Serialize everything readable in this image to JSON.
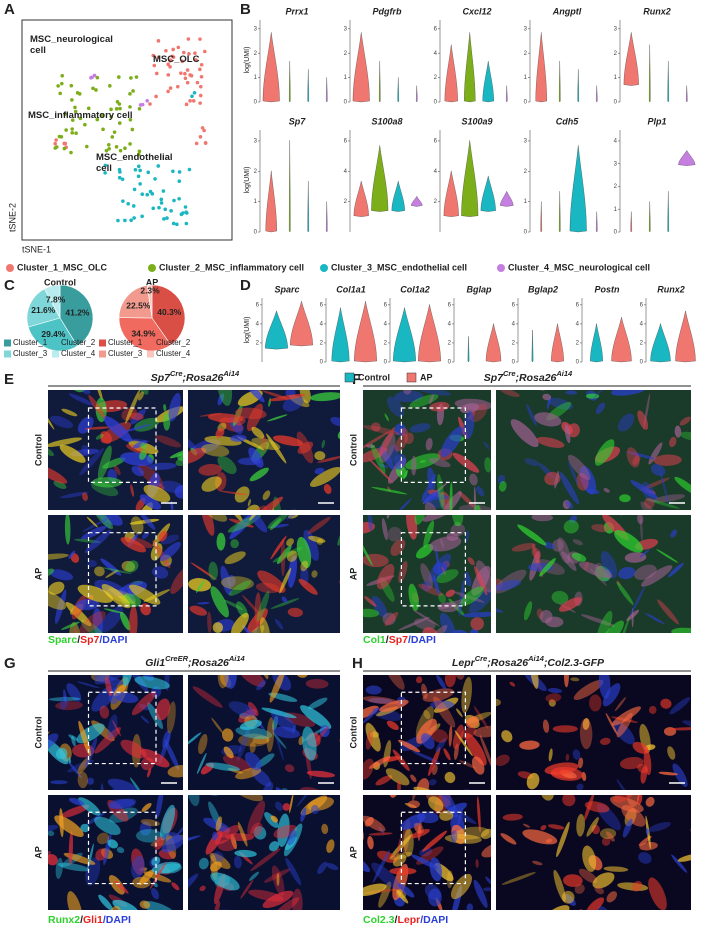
{
  "panel_labels": [
    "A",
    "B",
    "C",
    "D",
    "E",
    "F",
    "G",
    "H"
  ],
  "tsne": {
    "cluster_labels": [
      "MSC_neurological cell",
      "MSC_OLC",
      "MSC_inflammatory cell",
      "MSC_endothelial cell"
    ],
    "x_label": "tSNE-1",
    "y_label": "tSNE-2"
  },
  "violins_b": {
    "y_label": "log(UMI)",
    "plots": [
      {
        "gene": "Prrx1",
        "yticks": [
          0,
          1,
          2,
          3
        ]
      },
      {
        "gene": "Pdgfrb",
        "yticks": [
          0,
          1,
          2,
          3
        ]
      },
      {
        "gene": "Cxcl12",
        "yticks": [
          0,
          2,
          4,
          6
        ]
      },
      {
        "gene": "Angptl",
        "yticks": [
          0,
          1,
          2,
          3
        ]
      },
      {
        "gene": "Runx2",
        "yticks": [
          0,
          1,
          2,
          3
        ]
      },
      {
        "gene": "Sp7",
        "yticks": [
          0,
          1,
          2,
          3
        ]
      },
      {
        "gene": "S100a8",
        "yticks": [
          2,
          4,
          6
        ]
      },
      {
        "gene": "S100a9",
        "yticks": [
          2,
          4,
          6
        ]
      },
      {
        "gene": "Cdh5",
        "yticks": [
          0,
          1,
          2,
          3
        ]
      },
      {
        "gene": "Plp1",
        "yticks": [
          0,
          1,
          2,
          3,
          4
        ]
      }
    ]
  },
  "cluster_legend": [
    {
      "name": "Cluster_1_MSC_OLC",
      "color": "#f0776f"
    },
    {
      "name": "Cluster_2_MSC_inflammatory cell",
      "color": "#7cae1a"
    },
    {
      "name": "Cluster_3_MSC_endothelial cell",
      "color": "#19b7c2"
    },
    {
      "name": "Cluster_4_MSC_neurological cell",
      "color": "#c47fe0"
    }
  ],
  "pies": [
    {
      "title": "Control",
      "values": [
        41.2,
        29.4,
        21.6,
        7.8
      ],
      "value_labels": [
        "41.2%",
        "29.4%",
        "21.6%",
        "7.8%"
      ],
      "legend": [
        "Cluster_1",
        "Cluster_2",
        "Cluster_3",
        "Cluster_4"
      ],
      "colors": [
        "#3a9d9d",
        "#4ec3c6",
        "#7fd7d9",
        "#b8ecee"
      ]
    },
    {
      "title": "AP",
      "values": [
        40.3,
        34.9,
        22.5,
        2.3
      ],
      "value_labels": [
        "40.3%",
        "34.9%",
        "22.5%",
        "2.3%"
      ],
      "legend": [
        "Cluster_1",
        "Cluster_2",
        "Cluster_3",
        "Cluster_4"
      ],
      "colors": [
        "#d94f45",
        "#f06a5f",
        "#f39a8f",
        "#f8c6bf"
      ]
    }
  ],
  "violins_d": {
    "y_label": "log(UMI)",
    "plots": [
      {
        "gene": "Sparc",
        "yticks": [
          2,
          4,
          6
        ]
      },
      {
        "gene": "Col1a1",
        "yticks": [
          0,
          2,
          4,
          6
        ]
      },
      {
        "gene": "Col1a2",
        "yticks": [
          0,
          2,
          4,
          6
        ]
      },
      {
        "gene": "Bglap",
        "yticks": [
          0,
          2,
          4,
          6
        ]
      },
      {
        "gene": "Bglap2",
        "yticks": [
          0,
          2,
          4,
          6
        ]
      },
      {
        "gene": "Postn",
        "yticks": [
          0,
          2,
          4,
          6
        ]
      },
      {
        "gene": "Runx2",
        "yticks": [
          0,
          2,
          4,
          6
        ]
      }
    ],
    "legend": [
      {
        "name": "Control",
        "color": "#19b7c2"
      },
      {
        "name": "AP",
        "color": "#f0776f"
      }
    ]
  },
  "micrographs": [
    {
      "title_parts": [
        {
          "text": "Sp7",
          "sup": false
        },
        {
          "text": "Cre",
          "sup": true
        },
        {
          "text": ";Rosa26",
          "sup": false
        },
        {
          "text": "Ai14",
          "sup": true
        }
      ],
      "rows": [
        "Control",
        "AP"
      ],
      "stain": [
        {
          "text": "Sparc",
          "color": "#2ed12e"
        },
        {
          "text": "/",
          "color": "#222222"
        },
        {
          "text": "Sp7",
          "color": "#e8231f"
        },
        {
          "text": "/DAPI",
          "color": "#2a3fd8"
        }
      ]
    },
    {
      "title_parts": [
        {
          "text": "Sp7",
          "sup": false
        },
        {
          "text": "Cre",
          "sup": true
        },
        {
          "text": ";Rosa26",
          "sup": false
        },
        {
          "text": "Ai14",
          "sup": true
        }
      ],
      "rows": [
        "Control",
        "AP"
      ],
      "stain": [
        {
          "text": "Col1",
          "color": "#2ed12e"
        },
        {
          "text": "/",
          "color": "#222222"
        },
        {
          "text": "Sp7",
          "color": "#e8231f"
        },
        {
          "text": "/DAPI",
          "color": "#2a3fd8"
        }
      ]
    },
    {
      "title_parts": [
        {
          "text": "Gli1",
          "sup": false
        },
        {
          "text": "CreER",
          "sup": true
        },
        {
          "text": ";Rosa26",
          "sup": false
        },
        {
          "text": "Ai14",
          "sup": true
        }
      ],
      "rows": [
        "Control",
        "AP"
      ],
      "stain": [
        {
          "text": "Runx2",
          "color": "#2ed12e"
        },
        {
          "text": "/",
          "color": "#222222"
        },
        {
          "text": "Gli1",
          "color": "#e8231f"
        },
        {
          "text": "/DAPI",
          "color": "#2a3fd8"
        }
      ]
    },
    {
      "title_parts": [
        {
          "text": "Lepr",
          "sup": false
        },
        {
          "text": "Cre",
          "sup": true
        },
        {
          "text": ";Rosa26",
          "sup": false
        },
        {
          "text": "Ai14",
          "sup": true
        },
        {
          "text": ";Col2.3-GFP",
          "sup": false
        }
      ],
      "rows": [
        "Control",
        "AP"
      ],
      "stain": [
        {
          "text": "Col2.3",
          "color": "#2ed12e"
        },
        {
          "text": "/",
          "color": "#222222"
        },
        {
          "text": "Lepr",
          "color": "#e8231f"
        },
        {
          "text": "/DAPI",
          "color": "#2a3fd8"
        }
      ]
    }
  ]
}
